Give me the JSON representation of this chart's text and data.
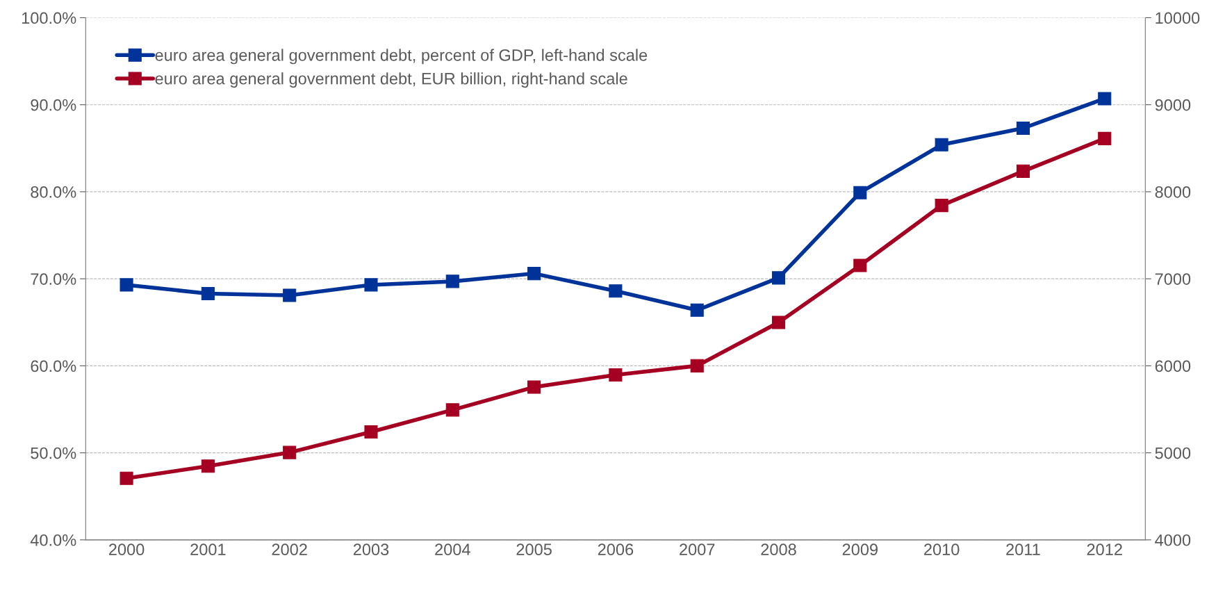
{
  "chart_data": {
    "type": "line",
    "categories": [
      "2000",
      "2001",
      "2002",
      "2003",
      "2004",
      "2005",
      "2006",
      "2007",
      "2008",
      "2009",
      "2010",
      "2011",
      "2012"
    ],
    "series": [
      {
        "name": "euro area general government debt, percent of GDP, left-hand scale",
        "color": "#003399",
        "values": [
          69.3,
          68.3,
          68.1,
          69.3,
          69.7,
          70.6,
          68.6,
          66.4,
          70.1,
          79.9,
          85.4,
          87.3,
          90.7
        ]
      },
      {
        "name": "euro area general government debt, EUR billion, right-hand scale",
        "color": "#a50021",
        "axis": "y2",
        "values": [
          4707,
          4847,
          5004,
          5240,
          5493,
          5755,
          5895,
          6000,
          6498,
          7153,
          7843,
          8236,
          8611
        ]
      }
    ],
    "ylim": [
      40,
      100
    ],
    "yticks": [
      {
        "value": 40,
        "label": "40.0%"
      },
      {
        "value": 50,
        "label": "50.0%"
      },
      {
        "value": 60,
        "label": "60.0%"
      },
      {
        "value": 70,
        "label": "70.0%"
      },
      {
        "value": 80,
        "label": "80.0%"
      },
      {
        "value": 90,
        "label": "90.0%"
      },
      {
        "value": 100,
        "label": "100.0%"
      }
    ],
    "y2lim": [
      4000,
      10000
    ],
    "y2ticks": [
      4000,
      5000,
      6000,
      7000,
      8000,
      9000,
      10000
    ],
    "grid": "y",
    "legend": "top left",
    "marker": "square",
    "line_style": "solid"
  }
}
